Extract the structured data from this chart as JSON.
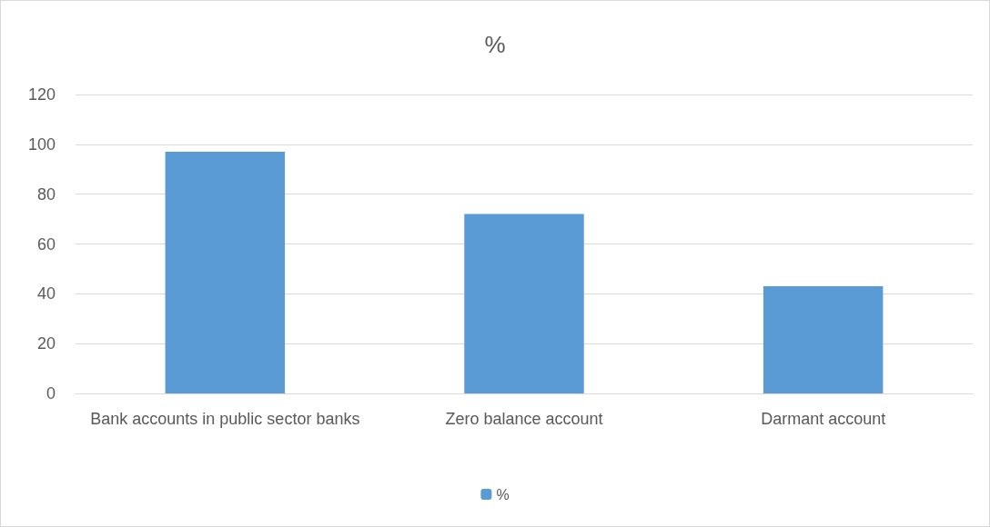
{
  "chart_data": {
    "type": "bar",
    "title": "%",
    "categories": [
      "Bank accounts in public sector banks",
      "Zero balance account",
      "Darmant account"
    ],
    "series": [
      {
        "name": "%",
        "color": "#5b9bd5",
        "values": [
          97,
          72,
          43
        ]
      }
    ],
    "ylim": [
      0,
      120
    ],
    "yticks": [
      0,
      20,
      40,
      60,
      80,
      100,
      120
    ],
    "grid": "y",
    "legend": "bottom"
  }
}
